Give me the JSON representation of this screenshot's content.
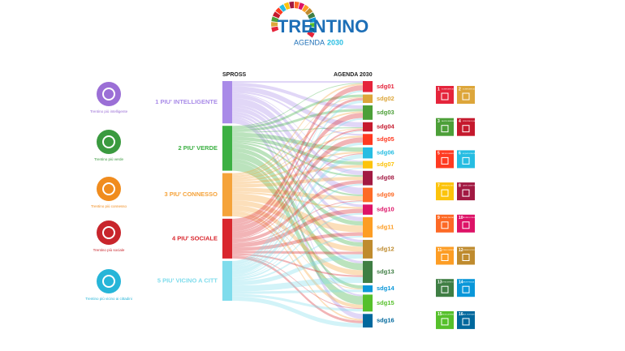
{
  "logo": {
    "title": "TRENTINO",
    "subtitle": "AGENDA",
    "year": "2030"
  },
  "icons": [
    "Trentino più intelligente",
    "Trentino più verde",
    "Trentino più connesso",
    "Trentino più sociale",
    "Trentino più vicino ai cittadini"
  ],
  "sdg_icons": [
    {
      "number": "1",
      "title": "SCONFIGGERE LA POVERTÀ"
    },
    {
      "number": "2",
      "title": "SCONFIGGERE LA FAME"
    },
    {
      "number": "3",
      "title": "SALUTE E BENESSERE"
    },
    {
      "number": "4",
      "title": "ISTRUZIONE DI QUALITÀ"
    },
    {
      "number": "5",
      "title": "PARITÀ DI GENERE"
    },
    {
      "number": "6",
      "title": "ACQUA PULITA E SERVIZI IGIENICO-SANITARI"
    },
    {
      "number": "7",
      "title": "ENERGIA PULITA E ACCESSIBILE"
    },
    {
      "number": "8",
      "title": "LAVORO DIGNITOSO E CRESCITA ECONOMICA"
    },
    {
      "number": "9",
      "title": "IMPRESE, INNOVAZIONE E INFRASTRUTTURE"
    },
    {
      "number": "10",
      "title": "RIDURRE LE DISUGUAGLIANZE"
    },
    {
      "number": "11",
      "title": "CITTÀ E COMUNITÀ SOSTENIBILI"
    },
    {
      "number": "12",
      "title": "CONSUMO E PRODUZIONE RESPONSABILI"
    },
    {
      "number": "13",
      "title": "LOTTA CONTRO IL CAMBIAMENTO CLIMATICO"
    },
    {
      "number": "14",
      "title": "VITA SOTT'ACQUA"
    },
    {
      "number": "15",
      "title": "VITA SULLA TERRA"
    },
    {
      "number": "16",
      "title": "PACE, GIUSTIZIA E ISTITUZIONI SOLIDE"
    }
  ],
  "chart_data": {
    "type": "sankey",
    "source_header": "SPROSS",
    "target_header": "AGENDA 2030",
    "categories": [
      "sdg01",
      "sdg02",
      "sdg03",
      "sdg04",
      "sdg05",
      "sdg06",
      "sdg07",
      "sdg08",
      "sdg09",
      "sdg10",
      "sdg11",
      "sdg12",
      "sdg13",
      "sdg14",
      "sdg15",
      "sdg16"
    ],
    "category_colors": [
      "#e5243b",
      "#dda63a",
      "#4c9f38",
      "#c5192d",
      "#ff3a21",
      "#26bde2",
      "#fcc30b",
      "#a21942",
      "#fd6925",
      "#dd1367",
      "#fd9d24",
      "#bf8b2e",
      "#3f7e44",
      "#0a97d9",
      "#56c02b",
      "#00689d"
    ],
    "series": [
      {
        "name": "1 PIU' INTELLIGENTE",
        "color": "#a98be8",
        "values": [
          2,
          0,
          4,
          6,
          2,
          0,
          1,
          5,
          8,
          3,
          5,
          3,
          3,
          0,
          2,
          6
        ]
      },
      {
        "name": "2 PIU' VERDE",
        "color": "#3cb043",
        "values": [
          1,
          3,
          3,
          1,
          0,
          5,
          4,
          2,
          2,
          0,
          5,
          5,
          8,
          4,
          10,
          0
        ]
      },
      {
        "name": "3 PIU' CONNESSO",
        "color": "#f5a33a",
        "values": [
          2,
          1,
          2,
          1,
          2,
          2,
          3,
          4,
          5,
          2,
          8,
          6,
          6,
          1,
          4,
          2
        ]
      },
      {
        "name": "4 PIU' SOCIALE",
        "color": "#d9272e",
        "values": [
          6,
          3,
          6,
          2,
          6,
          1,
          0,
          4,
          1,
          5,
          4,
          3,
          2,
          0,
          1,
          3
        ]
      },
      {
        "name": "5 PIU' VICINO A CITT",
        "color": "#7fdcec",
        "values": [
          2,
          3,
          2,
          1,
          3,
          5,
          1,
          2,
          1,
          2,
          2,
          5,
          7,
          3,
          3,
          5
        ]
      }
    ]
  }
}
